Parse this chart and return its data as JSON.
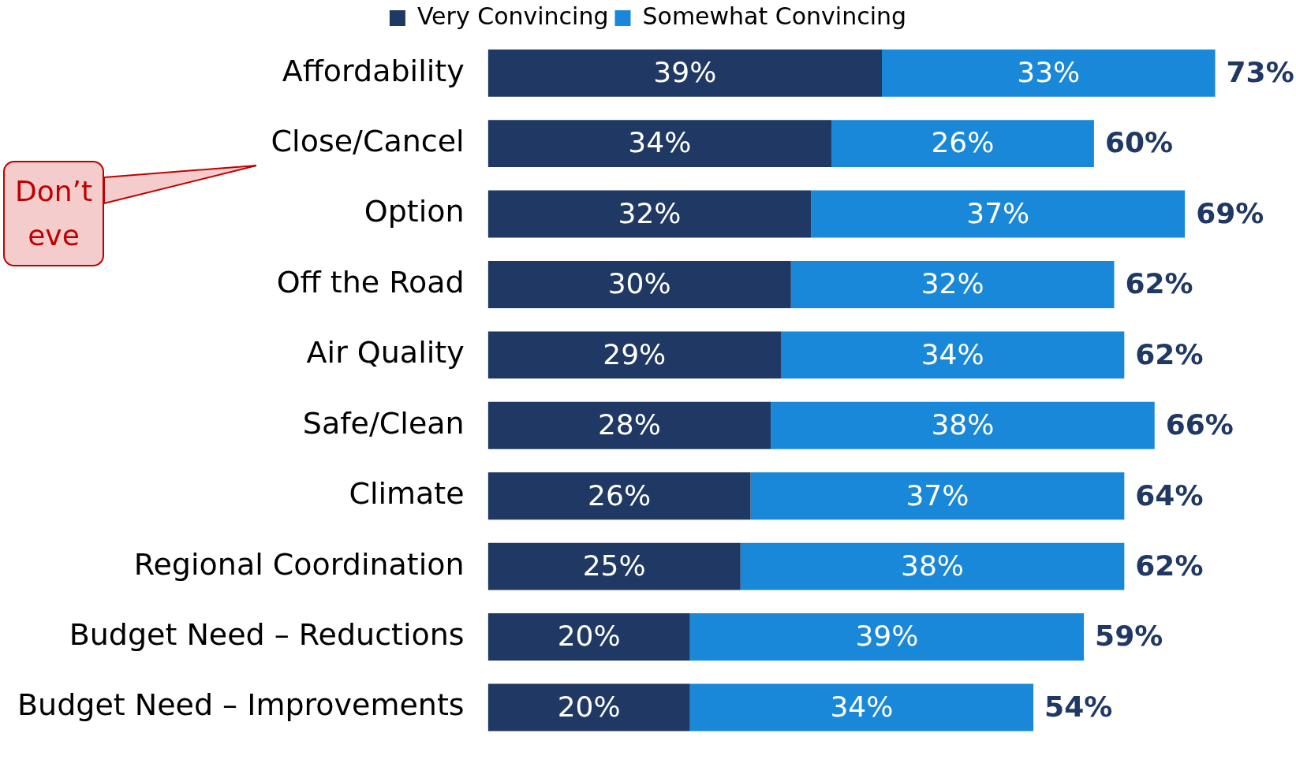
{
  "chart_data": {
    "type": "bar",
    "orientation": "horizontal",
    "stacked": true,
    "legend": "top",
    "tick_labels": "y",
    "categories": [
      "Affordability",
      "Close/Cancel",
      "Option",
      "Off the Road",
      "Air Quality",
      "Safe/Clean",
      "Climate",
      "Regional Coordination",
      "Budget Need – Reductions",
      "Budget Need – Improvements"
    ],
    "series": [
      {
        "name": "Very Convincing",
        "color": "#1f3864",
        "values": [
          39,
          34,
          32,
          30,
          29,
          28,
          26,
          25,
          20,
          20
        ],
        "value_labels": [
          "39%",
          "34%",
          "32%",
          "30%",
          "29%",
          "28%",
          "26%",
          "25%",
          "20%",
          "20%"
        ]
      },
      {
        "name": "Somewhat Convincing",
        "color": "#1a88d8",
        "values": [
          33,
          26,
          37,
          32,
          34,
          38,
          37,
          38,
          39,
          34
        ],
        "value_labels": [
          "33%",
          "26%",
          "37%",
          "32%",
          "34%",
          "38%",
          "37%",
          "38%",
          "39%",
          "34%"
        ]
      }
    ],
    "totals": [
      "73%",
      "60%",
      "69%",
      "62%",
      "62%",
      "66%",
      "64%",
      "62%",
      "59%",
      "54%"
    ],
    "annotations": [
      "Don’t eve"
    ]
  }
}
